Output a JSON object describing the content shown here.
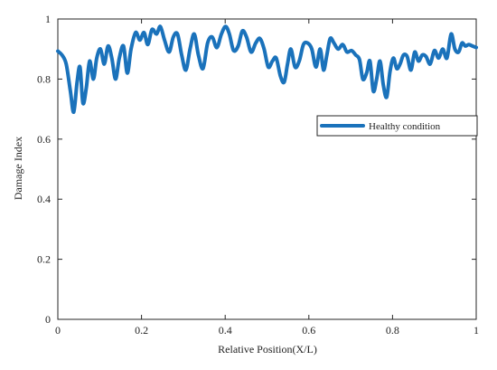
{
  "colors": {
    "series": "#1a72bb",
    "axis": "#262626",
    "background": "#ffffff"
  },
  "chart_data": {
    "type": "line",
    "title": "",
    "xlabel": "Relative Position(X/L)",
    "ylabel": "Damage Index",
    "xlim": [
      0,
      1
    ],
    "ylim": [
      0,
      1
    ],
    "xticks": [
      0,
      0.2,
      0.4,
      0.6,
      0.8,
      1
    ],
    "yticks": [
      0,
      0.2,
      0.4,
      0.6,
      0.8,
      1
    ],
    "xtick_labels": [
      "0",
      "0.2",
      "0.4",
      "0.6",
      "0.8",
      "1"
    ],
    "ytick_labels": [
      "0",
      "0.2",
      "0.4",
      "0.6",
      "0.8",
      "1"
    ],
    "grid": false,
    "legend_position": "right",
    "series": [
      {
        "name": "Healthy condition",
        "color": "#1a72bb",
        "points": [
          [
            0.0,
            0.893
          ],
          [
            0.01,
            0.88
          ],
          [
            0.02,
            0.85
          ],
          [
            0.03,
            0.76
          ],
          [
            0.038,
            0.69
          ],
          [
            0.046,
            0.79
          ],
          [
            0.053,
            0.84
          ],
          [
            0.06,
            0.72
          ],
          [
            0.068,
            0.77
          ],
          [
            0.076,
            0.86
          ],
          [
            0.085,
            0.8
          ],
          [
            0.093,
            0.87
          ],
          [
            0.102,
            0.9
          ],
          [
            0.111,
            0.85
          ],
          [
            0.12,
            0.91
          ],
          [
            0.129,
            0.87
          ],
          [
            0.138,
            0.8
          ],
          [
            0.147,
            0.87
          ],
          [
            0.157,
            0.91
          ],
          [
            0.166,
            0.82
          ],
          [
            0.175,
            0.9
          ],
          [
            0.186,
            0.955
          ],
          [
            0.196,
            0.93
          ],
          [
            0.206,
            0.955
          ],
          [
            0.215,
            0.915
          ],
          [
            0.225,
            0.965
          ],
          [
            0.236,
            0.95
          ],
          [
            0.245,
            0.975
          ],
          [
            0.255,
            0.93
          ],
          [
            0.266,
            0.89
          ],
          [
            0.276,
            0.94
          ],
          [
            0.286,
            0.95
          ],
          [
            0.296,
            0.88
          ],
          [
            0.306,
            0.83
          ],
          [
            0.316,
            0.9
          ],
          [
            0.326,
            0.95
          ],
          [
            0.336,
            0.88
          ],
          [
            0.347,
            0.835
          ],
          [
            0.358,
            0.92
          ],
          [
            0.369,
            0.94
          ],
          [
            0.38,
            0.905
          ],
          [
            0.391,
            0.95
          ],
          [
            0.401,
            0.975
          ],
          [
            0.41,
            0.95
          ],
          [
            0.42,
            0.895
          ],
          [
            0.431,
            0.91
          ],
          [
            0.441,
            0.96
          ],
          [
            0.451,
            0.94
          ],
          [
            0.462,
            0.89
          ],
          [
            0.473,
            0.92
          ],
          [
            0.483,
            0.935
          ],
          [
            0.493,
            0.9
          ],
          [
            0.503,
            0.84
          ],
          [
            0.513,
            0.86
          ],
          [
            0.522,
            0.87
          ],
          [
            0.532,
            0.81
          ],
          [
            0.541,
            0.79
          ],
          [
            0.549,
            0.85
          ],
          [
            0.557,
            0.9
          ],
          [
            0.567,
            0.84
          ],
          [
            0.577,
            0.86
          ],
          [
            0.587,
            0.915
          ],
          [
            0.597,
            0.92
          ],
          [
            0.607,
            0.9
          ],
          [
            0.617,
            0.84
          ],
          [
            0.627,
            0.9
          ],
          [
            0.635,
            0.83
          ],
          [
            0.643,
            0.88
          ],
          [
            0.651,
            0.935
          ],
          [
            0.66,
            0.92
          ],
          [
            0.67,
            0.9
          ],
          [
            0.681,
            0.915
          ],
          [
            0.691,
            0.89
          ],
          [
            0.702,
            0.895
          ],
          [
            0.712,
            0.88
          ],
          [
            0.721,
            0.865
          ],
          [
            0.729,
            0.8
          ],
          [
            0.738,
            0.82
          ],
          [
            0.746,
            0.86
          ],
          [
            0.754,
            0.76
          ],
          [
            0.762,
            0.8
          ],
          [
            0.77,
            0.86
          ],
          [
            0.778,
            0.78
          ],
          [
            0.786,
            0.74
          ],
          [
            0.794,
            0.825
          ],
          [
            0.802,
            0.87
          ],
          [
            0.81,
            0.835
          ],
          [
            0.818,
            0.85
          ],
          [
            0.826,
            0.88
          ],
          [
            0.835,
            0.875
          ],
          [
            0.844,
            0.83
          ],
          [
            0.853,
            0.89
          ],
          [
            0.862,
            0.86
          ],
          [
            0.871,
            0.88
          ],
          [
            0.88,
            0.875
          ],
          [
            0.89,
            0.85
          ],
          [
            0.9,
            0.895
          ],
          [
            0.91,
            0.87
          ],
          [
            0.92,
            0.9
          ],
          [
            0.93,
            0.87
          ],
          [
            0.94,
            0.95
          ],
          [
            0.949,
            0.9
          ],
          [
            0.958,
            0.89
          ],
          [
            0.966,
            0.92
          ],
          [
            0.974,
            0.91
          ],
          [
            0.982,
            0.915
          ],
          [
            0.991,
            0.91
          ],
          [
            1.0,
            0.905
          ]
        ]
      }
    ]
  }
}
